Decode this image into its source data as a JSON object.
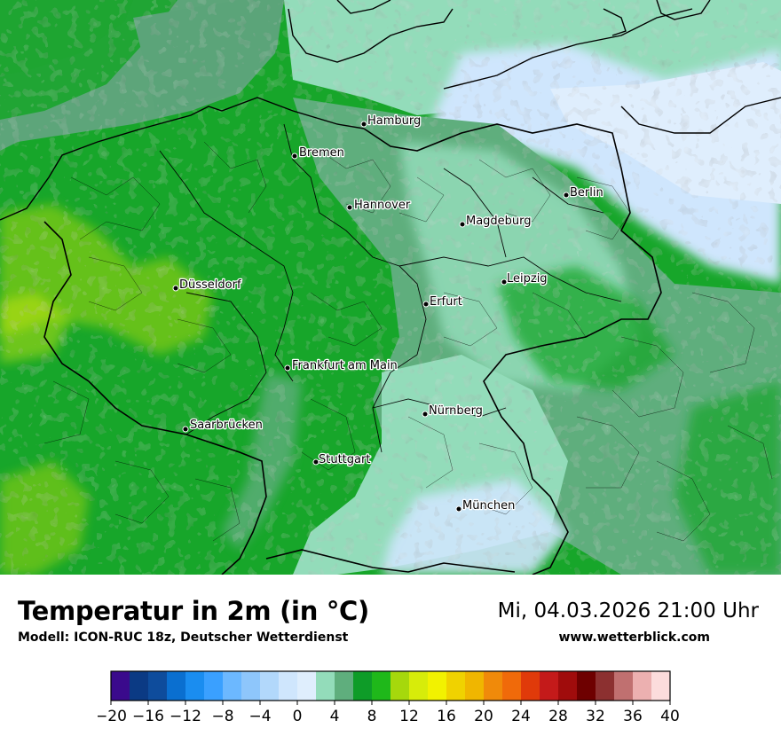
{
  "map": {
    "cities": [
      {
        "name": "Hamburg"
      },
      {
        "name": "Bremen"
      },
      {
        "name": "Berlin"
      },
      {
        "name": "Hannover"
      },
      {
        "name": "Magdeburg"
      },
      {
        "name": "Düsseldorf"
      },
      {
        "name": "Leipzig"
      },
      {
        "name": "Erfurt"
      },
      {
        "name": "Frankfurt am Main"
      },
      {
        "name": "Nürnberg"
      },
      {
        "name": "Saarbrücken"
      },
      {
        "name": "Stuttgart"
      },
      {
        "name": "München"
      }
    ]
  },
  "footer": {
    "title": "Temperatur in 2m (in °C)",
    "model": "Modell: ICON-RUC 18z, Deutscher Wetterdienst",
    "datetime": "Mi, 04.03.2026 21:00 Uhr",
    "website": "www.wetterblick.com"
  },
  "legend": {
    "ticks": [
      "−20",
      "−16",
      "−12",
      "−8",
      "−4",
      "0",
      "4",
      "8",
      "12",
      "16",
      "20",
      "24",
      "28",
      "32",
      "36",
      "40"
    ],
    "colors": [
      "#3a0a8c",
      "#0b3a84",
      "#0e4c9c",
      "#0a6fd0",
      "#1a8df0",
      "#3aa0ff",
      "#6cb8ff",
      "#8ec6fb",
      "#b2d8fb",
      "#cfe6fd",
      "#dfeefd",
      "#93dcba",
      "#5fae7d",
      "#0e9c28",
      "#1fb81a",
      "#a6d80c",
      "#d7ec0a",
      "#f2f200",
      "#f0d200",
      "#f0b600",
      "#f08a0a",
      "#f06a0a",
      "#e03a0a",
      "#c41a1a",
      "#a00c0c",
      "#6e0000",
      "#8c3030",
      "#c07070",
      "#ecb0b0",
      "#fcdcdc"
    ]
  }
}
